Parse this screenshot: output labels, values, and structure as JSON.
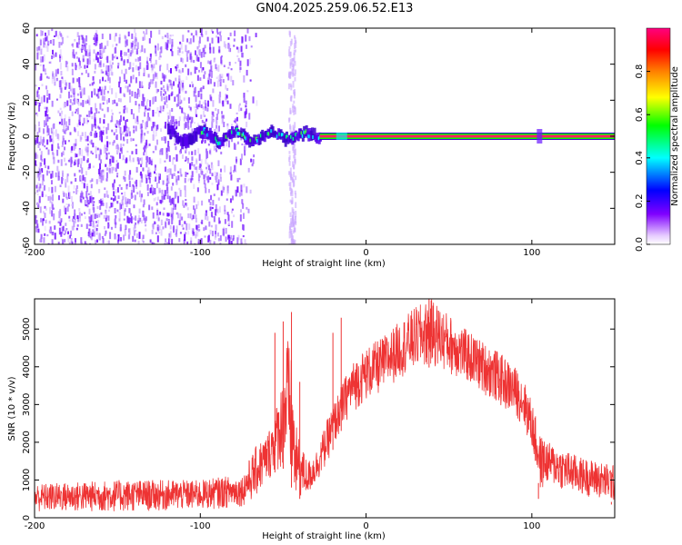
{
  "title": "GN04.2025.259.06.52.E13",
  "chart_data": [
    {
      "type": "heatmap",
      "xlabel": "Height of straight line (km)",
      "ylabel": "Frequency (Hz)",
      "xlim": [
        -200,
        150
      ],
      "ylim": [
        -60,
        60
      ],
      "xticks": [
        -200,
        -100,
        0,
        100
      ],
      "yticks": [
        -60,
        -40,
        -20,
        0,
        20,
        40,
        60
      ],
      "colorbar": {
        "label": "Normalized spectral amplitude",
        "range": [
          0,
          1
        ],
        "ticks": [
          "0.0",
          "0.2",
          "0.4",
          "0.6",
          "0.8"
        ],
        "colors": [
          "#ffffff",
          "#8000ff",
          "#0000ff",
          "#00ffff",
          "#00ff00",
          "#ffff00",
          "#ff8000",
          "#ff0000",
          "#ff0080"
        ]
      },
      "features": {
        "noise_region_km": [
          -200,
          -75
        ],
        "noise_stripe_km": [
          -47,
          -43
        ],
        "signal_band_start_km": -120,
        "solid_band_start_km": -28,
        "band_frequency_hz": 0
      }
    },
    {
      "type": "line",
      "xlabel": "Height of straight line (km)",
      "ylabel": "SNR (10 * v/v)",
      "xlim": [
        -200,
        150
      ],
      "ylim": [
        0,
        5800
      ],
      "xticks": [
        -200,
        -100,
        0,
        100
      ],
      "yticks": [
        0,
        1000,
        2000,
        3000,
        4000,
        5000
      ],
      "series_color": "#ee3333",
      "envelope": {
        "x": [
          -200,
          -150,
          -100,
          -85,
          -75,
          -70,
          -65,
          -60,
          -55,
          -50,
          -48,
          -45,
          -43,
          -40,
          -35,
          -30,
          -25,
          -20,
          -15,
          -10,
          -5,
          0,
          10,
          20,
          30,
          40,
          50,
          60,
          70,
          80,
          85,
          90,
          95,
          100,
          105,
          110,
          120,
          130,
          140,
          150
        ],
        "low": [
          150,
          150,
          200,
          250,
          300,
          400,
          600,
          900,
          1200,
          1300,
          1000,
          800,
          400,
          500,
          600,
          900,
          1300,
          1800,
          2300,
          2700,
          2900,
          3100,
          3300,
          3700,
          3900,
          4000,
          3800,
          3600,
          3300,
          3000,
          2800,
          2700,
          2400,
          1800,
          700,
          900,
          700,
          600,
          500,
          400
        ],
        "high": [
          900,
          1000,
          1000,
          1100,
          1100,
          1600,
          2000,
          2200,
          2800,
          3800,
          5000,
          4200,
          2600,
          2000,
          1500,
          1800,
          2400,
          3000,
          3500,
          4000,
          4300,
          4500,
          4800,
          5200,
          5600,
          5800,
          5400,
          5000,
          4700,
          4400,
          4200,
          4000,
          3700,
          3100,
          2200,
          2000,
          1800,
          1600,
          1500,
          1400
        ]
      },
      "spikes": [
        {
          "x": -55,
          "y": 4900
        },
        {
          "x": -50,
          "y": 5200
        },
        {
          "x": -45,
          "y": 5450
        },
        {
          "x": -40,
          "y": 3600
        },
        {
          "x": -20,
          "y": 4900
        },
        {
          "x": -15,
          "y": 5300
        },
        {
          "x": 38,
          "y": 5800
        },
        {
          "x": 104,
          "y": 500
        },
        {
          "x": 148,
          "y": 350
        }
      ]
    }
  ]
}
